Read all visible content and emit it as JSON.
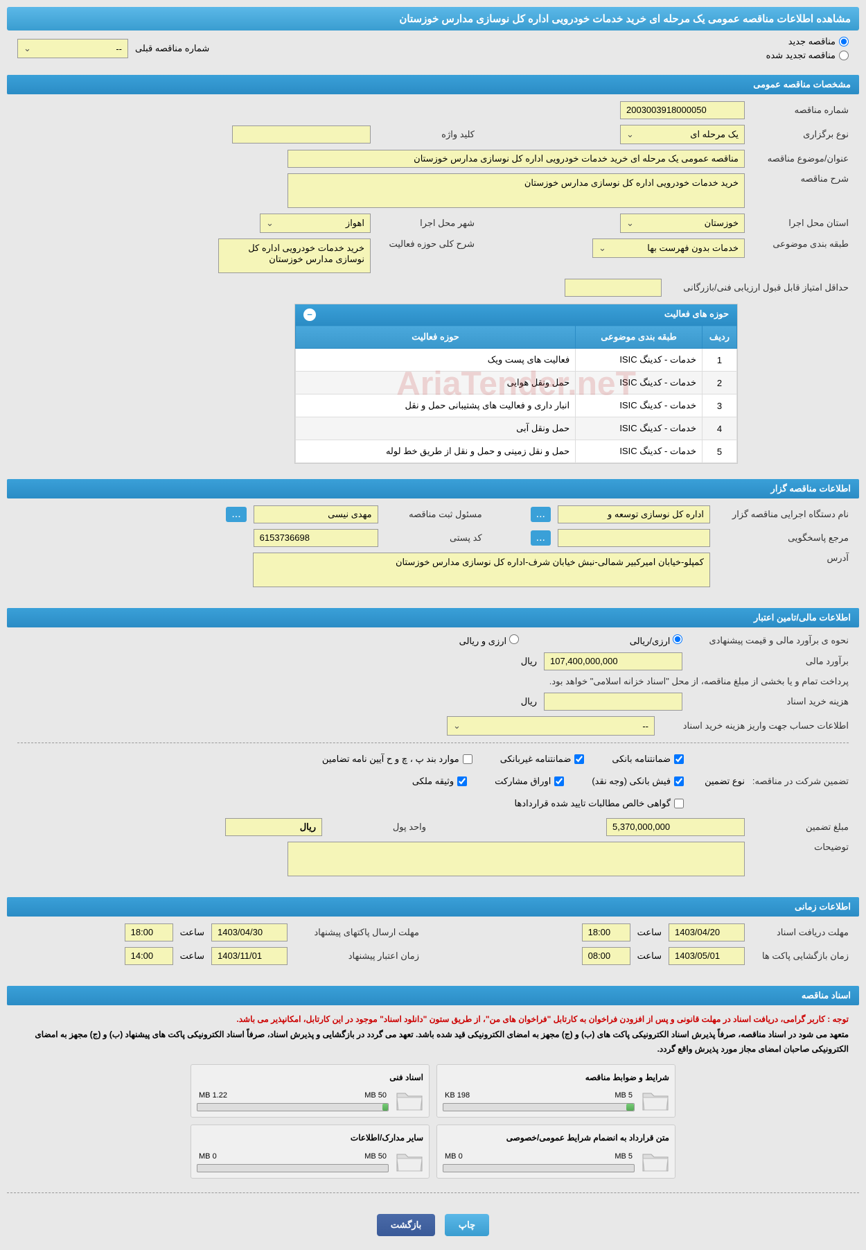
{
  "header": {
    "title": "مشاهده اطلاعات مناقصه عمومی یک مرحله ای خرید خدمات خودرویی اداره کل نوسازی مدارس خوزستان"
  },
  "radioOptions": {
    "new": "مناقصه جدید",
    "renewed": "مناقصه تجدید شده",
    "prevNumberLabel": "شماره مناقصه قبلی",
    "prevNumberValue": "--"
  },
  "section1": {
    "title": "مشخصات مناقصه عمومی",
    "tenderNumberLabel": "شماره مناقصه",
    "tenderNumber": "2003003918000050",
    "keywordLabel": "کلید واژه",
    "keyword": "",
    "typeLabel": "نوع برگزاری",
    "type": "یک مرحله ای",
    "subjectLabel": "عنوان/موضوع مناقصه",
    "subject": "مناقصه عمومی یک مرحله ای خرید خدمات خودرویی اداره کل نوسازی مدارس خوزستان",
    "descLabel": "شرح مناقصه",
    "desc": "خرید خدمات خودرویی اداره کل نوسازی مدارس خوزستان",
    "provinceLabel": "استان محل اجرا",
    "province": "خوزستان",
    "cityLabel": "شهر محل اجرا",
    "city": "اهواز",
    "categoryLabel": "طبقه بندی موضوعی",
    "category": "خدمات بدون فهرست بها",
    "scopeDescLabel": "شرح کلی حوزه فعالیت",
    "scopeDesc": "خرید خدمات خودرویی اداره کل نوسازی مدارس خوزستان",
    "minScoreLabel": "حداقل امتیاز قابل قبول ارزیابی فنی/بازرگانی",
    "minScore": ""
  },
  "activityTable": {
    "title": "حوزه های فعالیت",
    "headers": {
      "row": "ردیف",
      "category": "طبقه بندی موضوعی",
      "scope": "حوزه فعالیت"
    },
    "rows": [
      {
        "n": "1",
        "cat": "خدمات - کدینگ ISIC",
        "scope": "فعالیت های پست ویک"
      },
      {
        "n": "2",
        "cat": "خدمات - کدینگ ISIC",
        "scope": "حمل ونقل هوایی"
      },
      {
        "n": "3",
        "cat": "خدمات - کدینگ ISIC",
        "scope": "انبار داری و فعالیت های پشتیبانی حمل و نقل"
      },
      {
        "n": "4",
        "cat": "خدمات - کدینگ ISIC",
        "scope": "حمل ونقل آبی"
      },
      {
        "n": "5",
        "cat": "خدمات - کدینگ ISIC",
        "scope": "حمل و نقل زمینی و حمل و نقل از طریق خط لوله"
      }
    ]
  },
  "section2": {
    "title": "اطلاعات مناقصه گزار",
    "orgLabel": "نام دستگاه اجرایی مناقصه گزار",
    "org": "اداره کل نوسازی  توسعه و",
    "managerLabel": "مسئول ثبت مناقصه",
    "manager": "مهدی نیسی",
    "refLabel": "مرجع پاسخگویی",
    "ref": "",
    "postalLabel": "کد پستی",
    "postal": "6153736698",
    "addressLabel": "آدرس",
    "address": "کمپلو-خیابان امیرکبیر شمالی-نبش خیابان شرف-اداره کل نوسازی مدارس خوزستان"
  },
  "section3": {
    "title": "اطلاعات مالی/تامین اعتبار",
    "estimateMethodLabel": "نحوه ی برآورد مالی و قیمت پیشنهادی",
    "option1": "ارزی/ریالی",
    "option2": "ارزی و ریالی",
    "estimateLabel": "برآورد مالی",
    "estimate": "107,400,000,000",
    "currency": "ریال",
    "paymentNote": "پرداخت تمام و یا بخشی از مبلغ مناقصه، از محل \"اسناد خزانه اسلامی\" خواهد بود.",
    "docCostLabel": "هزینه خرید اسناد",
    "docCost": "",
    "accountLabel": "اطلاعات حساب جهت واریز هزینه خرید اسناد",
    "accountValue": "--",
    "guaranteeLabel": "تضمین شرکت در مناقصه:",
    "guaranteeTypeLabel": "نوع تضمین",
    "checks": {
      "bank": "ضمانتنامه بانکی",
      "nonbank": "ضمانتنامه غیربانکی",
      "bandP": "موارد بند پ ، چ و ح آیین نامه تضامین",
      "cash": "فیش بانکی (وجه نقد)",
      "shares": "اوراق مشارکت",
      "property": "وثیقه ملکی",
      "receivables": "گواهی خالص مطالبات تایید شده قراردادها"
    },
    "guaranteeAmountLabel": "مبلغ تضمین",
    "guaranteeAmount": "5,370,000,000",
    "unitLabel": "واحد پول",
    "unit": "ریال",
    "notesLabel": "توضیحات",
    "notes": ""
  },
  "section4": {
    "title": "اطلاعات زمانی",
    "docDeadlineLabel": "مهلت دریافت اسناد",
    "docDeadline": "1403/04/20",
    "docTime": "18:00",
    "envelopeDeadlineLabel": "مهلت ارسال پاکتهای پیشنهاد",
    "envelopeDeadline": "1403/04/30",
    "envelopeTime": "18:00",
    "openLabel": "زمان بازگشایی پاکت ها",
    "openDate": "1403/05/01",
    "openTime": "08:00",
    "validityLabel": "زمان اعتبار پیشنهاد",
    "validityDate": "1403/11/01",
    "validityTime": "14:00",
    "timeLabel": "ساعت"
  },
  "section5": {
    "title": "اسناد مناقصه",
    "note1": "توجه : کاربر گرامی، دریافت اسناد در مهلت قانونی و پس از افزودن فراخوان به کارتابل \"فراخوان های من\"، از طریق ستون \"دانلود اسناد\" موجود در این کارتابل، امکانپذیر می باشد.",
    "note2": "متعهد می شود در اسناد مناقصه، صرفاً پذیرش اسناد الکترونیکی پاکت های (ب) و (ج) مجهز به امضای الکترونیکی قید شده باشد. تعهد می گردد در بازگشایی و پذیرش اسناد، صرفاً اسناد الکترونیکی پاکت های پیشنهاد (ب) و (ج) مجهز به امضای الکترونیکی صاحبان امضای مجاز مورد پذیرش واقع گردد.",
    "docs": [
      {
        "title": "شرایط و ضوابط مناقصه",
        "used": "198 KB",
        "total": "5 MB",
        "pct": 4
      },
      {
        "title": "اسناد فنی",
        "used": "1.22 MB",
        "total": "50 MB",
        "pct": 3
      },
      {
        "title": "متن قرارداد به انضمام شرایط عمومی/خصوصی",
        "used": "0 MB",
        "total": "5 MB",
        "pct": 0
      },
      {
        "title": "سایر مدارک/اطلاعات",
        "used": "0 MB",
        "total": "50 MB",
        "pct": 0
      }
    ]
  },
  "buttons": {
    "print": "چاپ",
    "back": "بازگشت"
  },
  "watermark": "AriaTender.neT"
}
